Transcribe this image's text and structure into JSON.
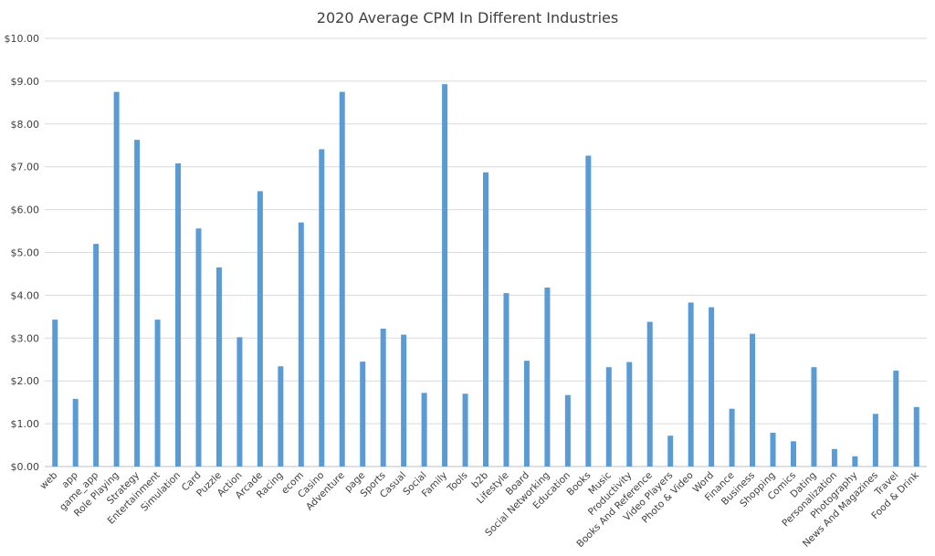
{
  "chart_data": {
    "type": "bar",
    "title": "2020 Average CPM In Different Industries",
    "xlabel": "",
    "ylabel": "",
    "ylim": [
      0,
      10
    ],
    "yticks": [
      "$0.00",
      "$1.00",
      "$2.00",
      "$3.00",
      "$4.00",
      "$5.00",
      "$6.00",
      "$7.00",
      "$8.00",
      "$9.00",
      "$10.00"
    ],
    "grid": true,
    "legend": "none",
    "bar_color": "#5b9bd5",
    "categories": [
      "web",
      "app",
      "game_app",
      "Role Playing",
      "Strategy",
      "Entertainment",
      "Simulation",
      "Card",
      "Puzzle",
      "Action",
      "Arcade",
      "Racing",
      "ecom",
      "Casino",
      "Adventure",
      "page",
      "Sports",
      "Casual",
      "Social",
      "Family",
      "Tools",
      "b2b",
      "Lifestyle",
      "Board",
      "Social Networking",
      "Education",
      "Books",
      "Music",
      "Productivity",
      "Books And Reference",
      "Video Players",
      "Photo & Video",
      "Word",
      "Finance",
      "Business",
      "Shopping",
      "Comics",
      "Dating",
      "Personalization",
      "Photography",
      "News And Magazines",
      "Travel",
      "Food & Drink"
    ],
    "values": [
      3.43,
      1.58,
      5.2,
      8.75,
      7.63,
      3.43,
      7.08,
      5.56,
      4.65,
      3.02,
      6.43,
      2.34,
      5.7,
      7.41,
      8.75,
      2.45,
      3.22,
      3.08,
      1.72,
      8.93,
      1.7,
      6.87,
      4.05,
      2.47,
      4.18,
      1.67,
      7.26,
      2.32,
      2.44,
      3.38,
      0.72,
      3.83,
      3.72,
      1.35,
      3.1,
      0.79,
      0.59,
      2.32,
      0.41,
      0.24,
      1.23,
      2.24,
      1.39
    ]
  }
}
